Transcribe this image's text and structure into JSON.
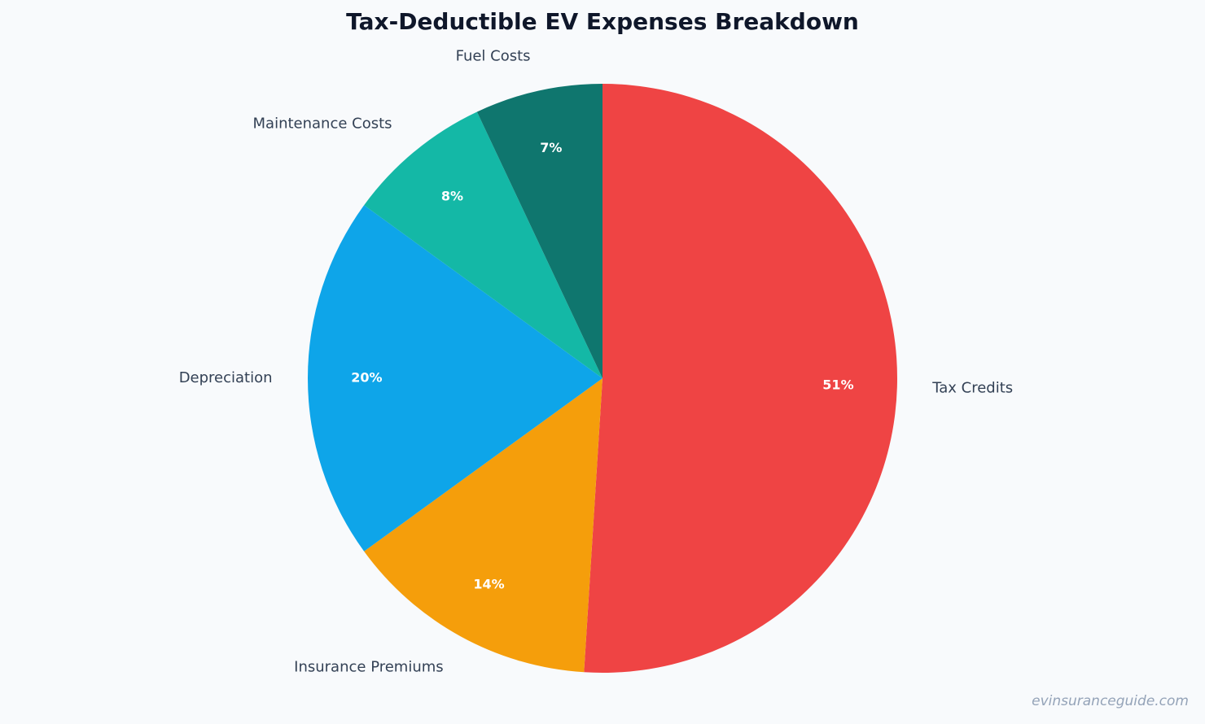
{
  "chart_data": {
    "type": "pie",
    "title": "Tax-Deductible EV Expenses Breakdown",
    "categories": [
      "Tax Credits",
      "Insurance Premiums",
      "Depreciation",
      "Maintenance Costs",
      "Fuel Costs"
    ],
    "values": [
      51,
      14,
      20,
      8,
      7
    ],
    "value_labels": [
      "51%",
      "14%",
      "20%",
      "8%",
      "7%"
    ],
    "colors": [
      "#ef4444",
      "#f59e0b",
      "#0ea5e9",
      "#14b8a6",
      "#0f766e"
    ],
    "watermark": "evinsuranceguide.com"
  }
}
